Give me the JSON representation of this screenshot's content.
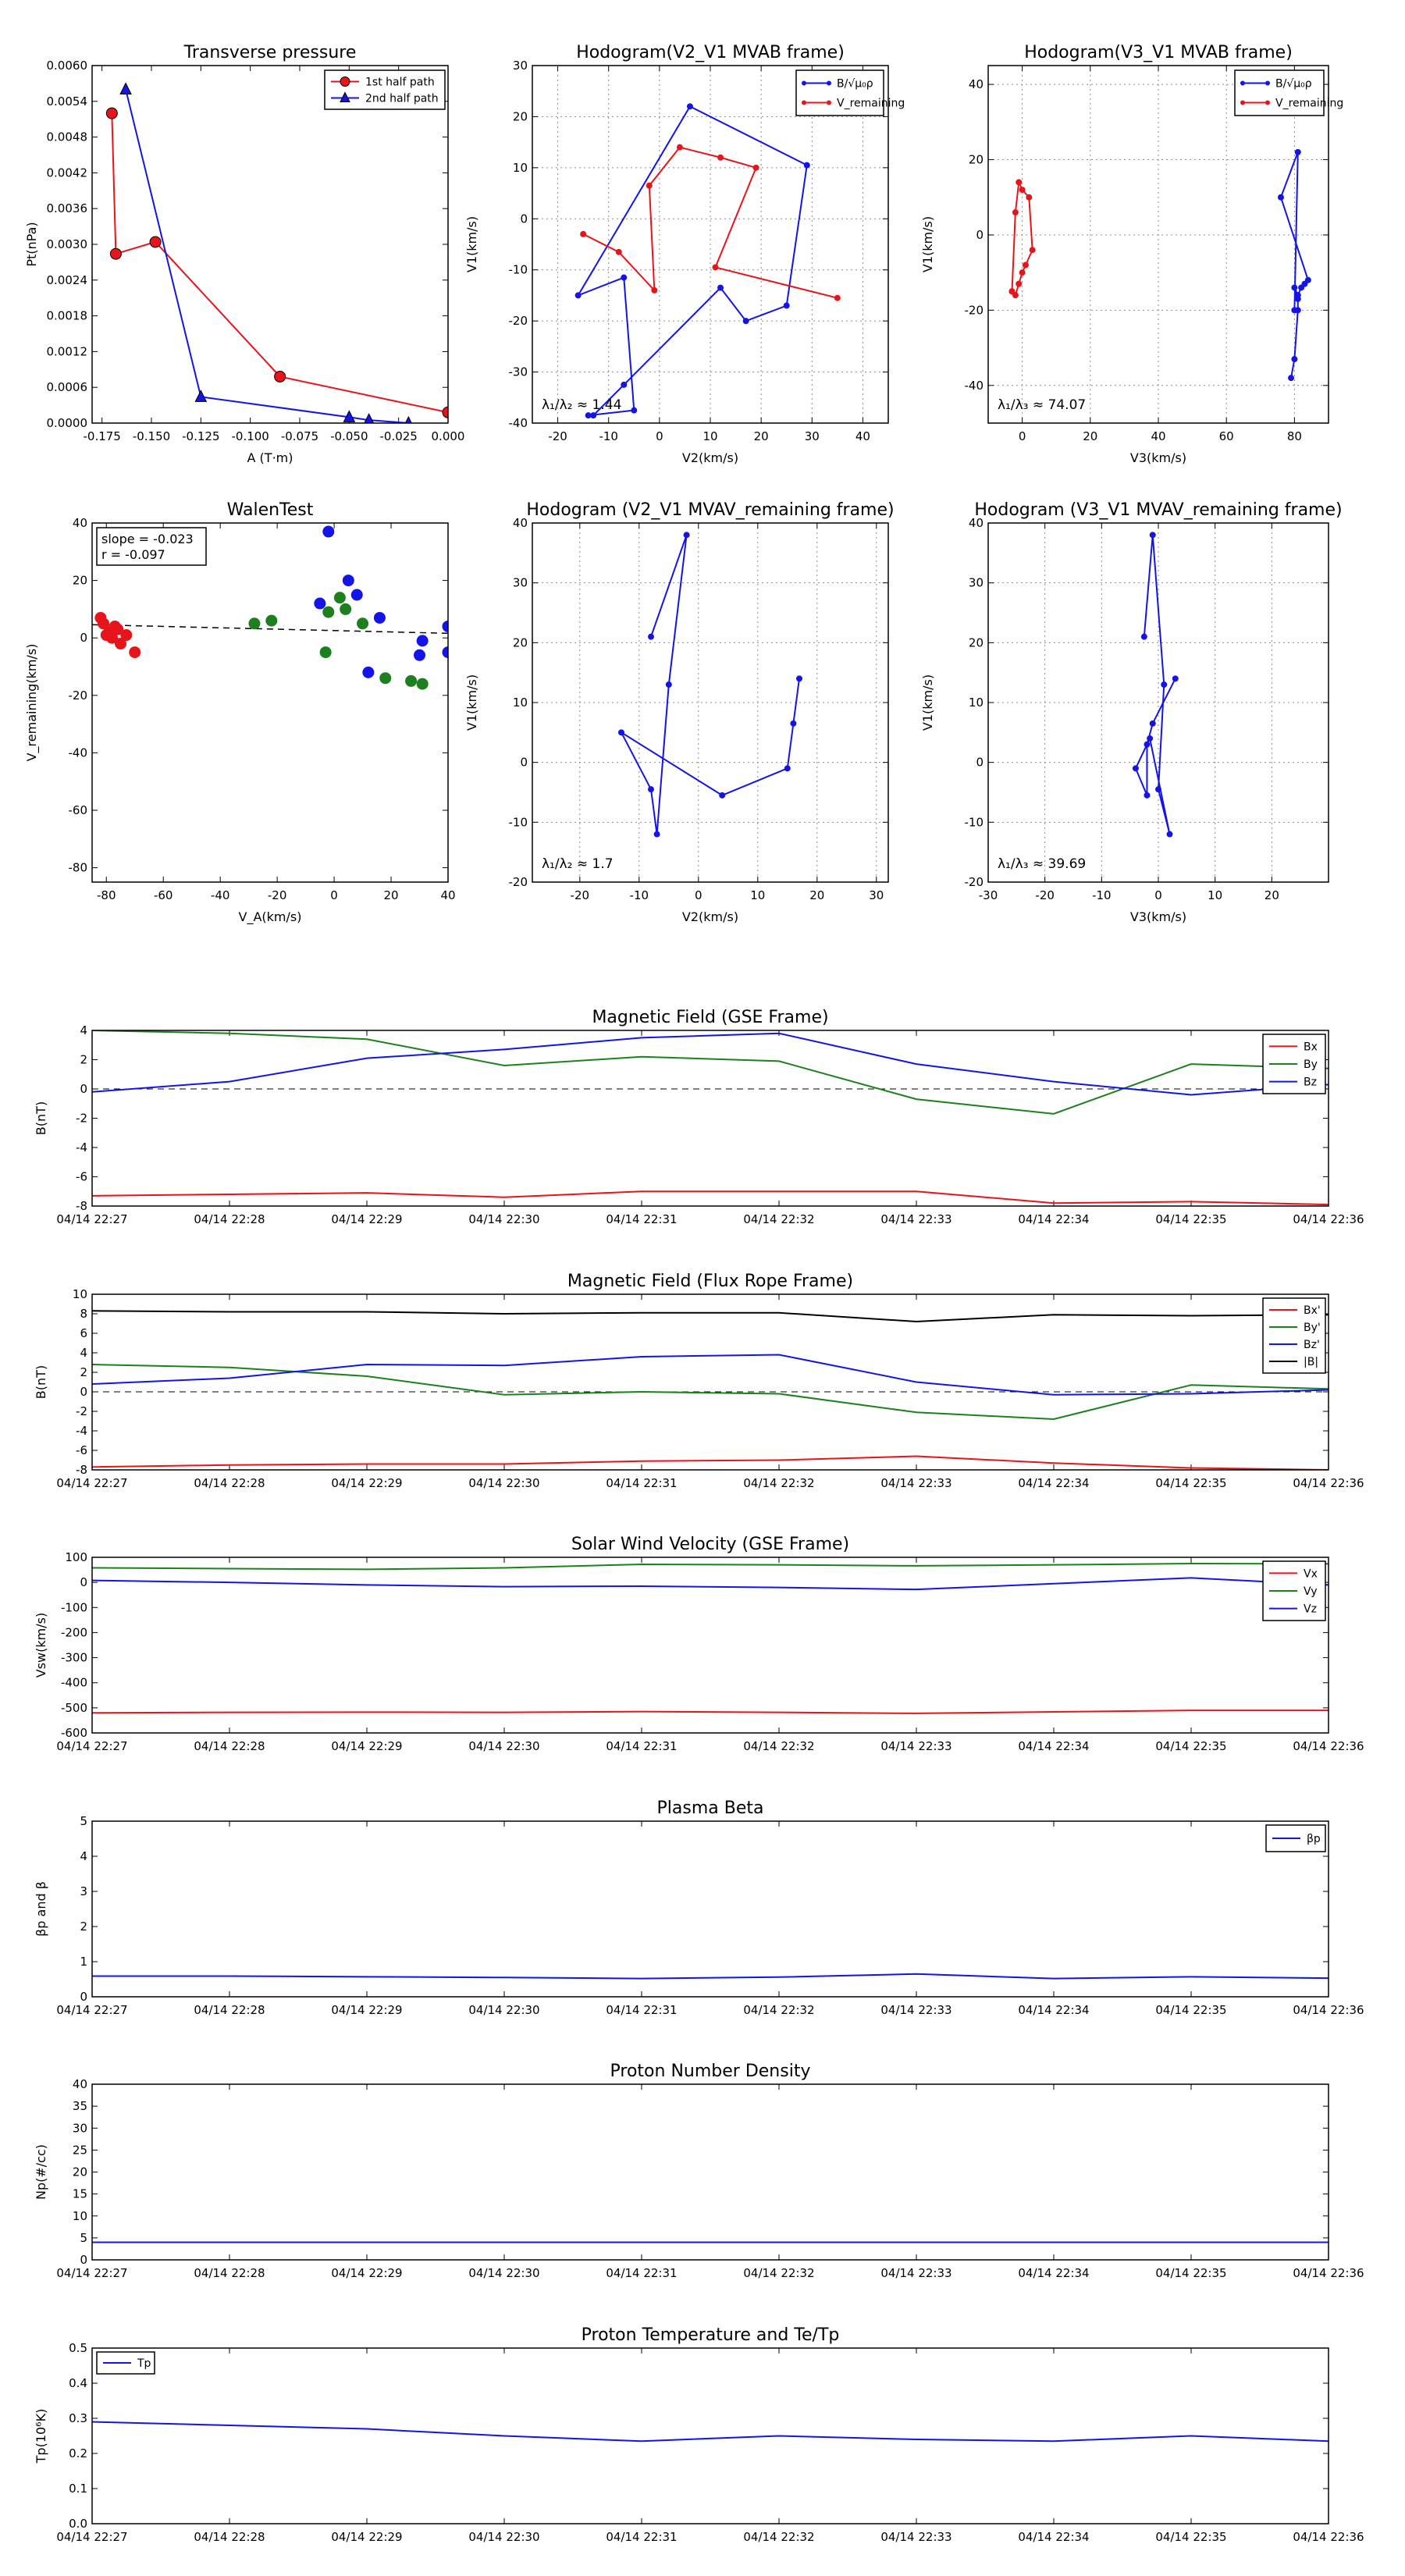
{
  "colors": {
    "red": "#e8141b",
    "green": "#1d7f1d",
    "blue": "#1414e8",
    "black": "#000000",
    "grid": "#8c8c8c"
  },
  "chart_data": [
    {
      "id": "transverse-pressure",
      "type": "line",
      "title": "Transverse pressure",
      "xlabel": "A (T·m)",
      "ylabel": "Pt(nPa)",
      "xlim": [
        -0.18,
        0.0
      ],
      "ylim": [
        0.0,
        0.006
      ],
      "xticks": [
        -0.175,
        -0.15,
        -0.125,
        -0.1,
        -0.075,
        -0.05,
        -0.025,
        0.0
      ],
      "xtick_labels": [
        "-0.175",
        "-0.150",
        "-0.125",
        "-0.100",
        "-0.075",
        "-0.050",
        "-0.025",
        "0.000"
      ],
      "yticks": [
        0.0,
        0.0006,
        0.0012,
        0.0018,
        0.0024,
        0.003,
        0.0036,
        0.0042,
        0.0048,
        0.0054,
        0.006
      ],
      "ytick_labels": [
        "0.0000",
        "0.0006",
        "0.0012",
        "0.0018",
        "0.0024",
        "0.0030",
        "0.0036",
        "0.0042",
        "0.0048",
        "0.0054",
        "0.0060"
      ],
      "grid": false,
      "legend": "top-right",
      "series": [
        {
          "name": "1st half path",
          "color": "red",
          "marker": "circle",
          "line": "solid",
          "x": [
            -0.17,
            -0.168,
            -0.148,
            -0.085,
            0.0
          ],
          "y": [
            0.0052,
            0.00284,
            0.00304,
            0.00078,
            0.00018
          ]
        },
        {
          "name": "2nd half path",
          "color": "blue",
          "marker": "triangle",
          "line": "solid",
          "x": [
            -0.163,
            -0.125,
            -0.05,
            -0.04,
            -0.02
          ],
          "y": [
            0.0056,
            0.00044,
            0.0001,
            5e-05,
            0.0
          ]
        }
      ]
    },
    {
      "id": "hodogram-v2-v1-mvab",
      "type": "line",
      "title": "Hodogram(V2_V1 MVAB frame)",
      "xlabel": "V2(km/s)",
      "ylabel": "V1(km/s)",
      "xlim": [
        -25,
        45
      ],
      "ylim": [
        -40,
        30
      ],
      "xticks": [
        -20,
        -10,
        0,
        10,
        20,
        30,
        40
      ],
      "yticks": [
        -40,
        -30,
        -20,
        -10,
        0,
        10,
        20,
        30
      ],
      "grid": true,
      "legend": "top-right",
      "annotation": "λ₁/λ₂ ≈ 1.44",
      "series": [
        {
          "name": "B/√μ₀ρ",
          "color": "blue",
          "marker": "dot",
          "x": [
            -14,
            -5,
            -7,
            -16,
            6,
            29,
            25,
            17,
            12,
            -7,
            -13
          ],
          "y": [
            -38.5,
            -37.5,
            -11.5,
            -15,
            22,
            10.5,
            -17,
            -20,
            -13.5,
            -32.5,
            -38.5
          ]
        },
        {
          "name": "V_remaining",
          "color": "red",
          "marker": "dot",
          "x": [
            -15,
            -8,
            -1,
            -2,
            4,
            12,
            19,
            11,
            35
          ],
          "y": [
            -3,
            -6.5,
            -14,
            6.5,
            14,
            12,
            10,
            -9.5,
            -15.5
          ]
        }
      ]
    },
    {
      "id": "hodogram-v3-v1-mvab",
      "type": "line",
      "title": "Hodogram(V3_V1 MVAB frame)",
      "xlabel": "V3(km/s)",
      "ylabel": "V1(km/s)",
      "xlim": [
        -10,
        90
      ],
      "ylim": [
        -50,
        45
      ],
      "xticks": [
        0,
        20,
        40,
        60,
        80
      ],
      "yticks": [
        -40,
        -20,
        0,
        20,
        40
      ],
      "grid": true,
      "legend": "top-right",
      "annotation": "λ₁/λ₃ ≈ 74.07",
      "series": [
        {
          "name": "B/√μ₀ρ",
          "color": "blue",
          "marker": "dot",
          "x": [
            79,
            80,
            81,
            81,
            80,
            81,
            82,
            83,
            84,
            76,
            81,
            80
          ],
          "y": [
            -38,
            -33,
            -20,
            -17,
            -14,
            -16,
            -14,
            -13,
            -12,
            10,
            22,
            -20
          ]
        },
        {
          "name": "V_remaining",
          "color": "red",
          "marker": "dot",
          "x": [
            -3,
            -2,
            -1,
            0,
            1,
            3,
            2,
            0,
            -1,
            -2,
            -3
          ],
          "y": [
            -15,
            -16,
            -13,
            -10,
            -8,
            -4,
            10,
            12,
            14,
            6,
            -15
          ]
        }
      ]
    },
    {
      "id": "walen-test",
      "type": "scatter",
      "title": "WalenTest",
      "xlabel": "V_A(km/s)",
      "ylabel": "V_remaining(km/s)",
      "xlim": [
        -85,
        40
      ],
      "ylim": [
        -85,
        40
      ],
      "xticks": [
        -80,
        -60,
        -40,
        -20,
        0,
        20,
        40
      ],
      "yticks": [
        -80,
        -60,
        -40,
        -20,
        0,
        20,
        40
      ],
      "grid": false,
      "annotation_lines": [
        "slope = -0.023",
        "r = -0.097"
      ],
      "fit_line": {
        "x": [
          -85,
          40
        ],
        "y": [
          4.6,
          1.6
        ]
      },
      "series": [
        {
          "name": "red",
          "color": "red",
          "x": [
            -82,
            -81,
            -80,
            -79,
            -78,
            -77,
            -76,
            -75,
            -73,
            -70
          ],
          "y": [
            7,
            5,
            1,
            2,
            0,
            4,
            3,
            -2,
            1,
            -5
          ]
        },
        {
          "name": "green",
          "color": "green",
          "x": [
            -28,
            -22,
            -3,
            -2,
            2,
            4,
            10,
            18,
            27,
            31
          ],
          "y": [
            5,
            6,
            -5,
            9,
            14,
            10,
            5,
            -14,
            -15,
            -16
          ]
        },
        {
          "name": "blue",
          "color": "blue",
          "x": [
            -2,
            -5,
            5,
            8,
            12,
            16,
            30,
            31,
            40,
            40
          ],
          "y": [
            37,
            12,
            20,
            15,
            -12,
            7,
            -6,
            -1,
            4,
            -5
          ]
        }
      ]
    },
    {
      "id": "hodogram-v2-v1-mvav",
      "type": "line",
      "title": "Hodogram (V2_V1 MVAV_remaining frame)",
      "xlabel": "V2(km/s)",
      "ylabel": "V1(km/s)",
      "xlim": [
        -28,
        32
      ],
      "ylim": [
        -20,
        40
      ],
      "xticks": [
        -20,
        -10,
        0,
        10,
        20,
        30
      ],
      "yticks": [
        -20,
        -10,
        0,
        10,
        20,
        30,
        40
      ],
      "grid": true,
      "annotation": "λ₁/λ₂ ≈ 1.7",
      "series": [
        {
          "name": "",
          "color": "blue",
          "marker": "dot",
          "x": [
            -8,
            -2,
            -5,
            -7,
            -8,
            -13,
            4,
            15,
            16,
            17
          ],
          "y": [
            21,
            38,
            13,
            -12,
            -4.5,
            5,
            -5.5,
            -1,
            6.5,
            14
          ]
        }
      ]
    },
    {
      "id": "hodogram-v3-v1-mvav",
      "type": "line",
      "title": "Hodogram (V3_V1 MVAV_remaining frame)",
      "xlabel": "V3(km/s)",
      "ylabel": "V1(km/s)",
      "xlim": [
        -30,
        30
      ],
      "ylim": [
        -20,
        40
      ],
      "xticks": [
        -30,
        -20,
        -10,
        0,
        10,
        20
      ],
      "yticks": [
        -20,
        -10,
        0,
        10,
        20,
        30,
        40
      ],
      "grid": true,
      "annotation": "λ₁/λ₃ ≈ 39.69",
      "series": [
        {
          "name": "",
          "color": "blue",
          "marker": "dot",
          "x": [
            -2.5,
            -1,
            1,
            0,
            2,
            -1.5,
            -4,
            -2,
            -2,
            -1,
            3
          ],
          "y": [
            21,
            38,
            13,
            -4.5,
            -12,
            4,
            -1,
            -5.5,
            3,
            6.5,
            14
          ]
        }
      ]
    },
    {
      "id": "magnetic-field-gse",
      "type": "line",
      "title": "Magnetic Field (GSE Frame)",
      "ylabel": "B(nT)",
      "ylim": [
        -8,
        4
      ],
      "yticks": [
        -8,
        -6,
        -4,
        -2,
        0,
        2,
        4
      ],
      "zero_line": true,
      "legend": "top-right",
      "categories": [
        "04/14 22:27",
        "04/14 22:28",
        "04/14 22:29",
        "04/14 22:30",
        "04/14 22:31",
        "04/14 22:32",
        "04/14 22:33",
        "04/14 22:34",
        "04/14 22:35",
        "04/14 22:36"
      ],
      "series": [
        {
          "name": "Bx",
          "color": "red",
          "values": [
            -7.3,
            -7.2,
            -7.1,
            -7.4,
            -7.0,
            -7.0,
            -7.0,
            -7.8,
            -7.7,
            -7.9
          ]
        },
        {
          "name": "By",
          "color": "green",
          "values": [
            4.0,
            3.8,
            3.4,
            1.6,
            2.2,
            1.9,
            -0.7,
            -1.7,
            1.7,
            1.4
          ]
        },
        {
          "name": "Bz",
          "color": "blue",
          "values": [
            -0.2,
            0.5,
            2.1,
            2.7,
            3.5,
            3.8,
            1.7,
            0.5,
            -0.4,
            0.3
          ]
        }
      ]
    },
    {
      "id": "magnetic-field-flux-rope",
      "type": "line",
      "title": "Magnetic Field (Flux Rope Frame)",
      "ylabel": "B(nT)",
      "ylim": [
        -8,
        10
      ],
      "yticks": [
        -8,
        -6,
        -4,
        -2,
        0,
        2,
        4,
        6,
        8,
        10
      ],
      "zero_line": true,
      "legend": "top-right",
      "categories": [
        "04/14 22:27",
        "04/14 22:28",
        "04/14 22:29",
        "04/14 22:30",
        "04/14 22:31",
        "04/14 22:32",
        "04/14 22:33",
        "04/14 22:34",
        "04/14 22:35",
        "04/14 22:36"
      ],
      "series": [
        {
          "name": "Bx'",
          "color": "red",
          "values": [
            -7.7,
            -7.5,
            -7.4,
            -7.4,
            -7.1,
            -7.0,
            -6.6,
            -7.3,
            -7.8,
            -8.0
          ]
        },
        {
          "name": "By'",
          "color": "green",
          "values": [
            2.8,
            2.5,
            1.6,
            -0.3,
            0.0,
            -0.2,
            -2.1,
            -2.8,
            0.7,
            0.3
          ]
        },
        {
          "name": "Bz'",
          "color": "blue",
          "values": [
            0.8,
            1.4,
            2.8,
            2.7,
            3.6,
            3.8,
            1.0,
            -0.3,
            -0.2,
            0.2
          ]
        },
        {
          "name": "|B|",
          "color": "black",
          "values": [
            8.3,
            8.2,
            8.2,
            8.0,
            8.1,
            8.1,
            7.2,
            7.9,
            7.8,
            7.9
          ]
        }
      ]
    },
    {
      "id": "solar-wind-velocity",
      "type": "line",
      "title": "Solar Wind Velocity (GSE Frame)",
      "ylabel": "Vsw(km/s)",
      "ylim": [
        -600,
        100
      ],
      "yticks": [
        -600,
        -500,
        -400,
        -300,
        -200,
        -100,
        0,
        100
      ],
      "legend": "top-right",
      "categories": [
        "04/14 22:27",
        "04/14 22:28",
        "04/14 22:29",
        "04/14 22:30",
        "04/14 22:31",
        "04/14 22:32",
        "04/14 22:33",
        "04/14 22:34",
        "04/14 22:35",
        "04/14 22:36"
      ],
      "series": [
        {
          "name": "Vx",
          "color": "red",
          "values": [
            -520,
            -518,
            -517,
            -518,
            -515,
            -518,
            -522,
            -516,
            -510,
            -510
          ]
        },
        {
          "name": "Vy",
          "color": "green",
          "values": [
            58,
            55,
            52,
            58,
            72,
            70,
            66,
            70,
            75,
            74
          ]
        },
        {
          "name": "Vz",
          "color": "blue",
          "values": [
            8,
            0,
            -10,
            -17,
            -15,
            -20,
            -28,
            -5,
            18,
            -10
          ]
        }
      ]
    },
    {
      "id": "plasma-beta",
      "type": "line",
      "title": "Plasma Beta",
      "ylabel": "βp and β",
      "ylim": [
        0,
        5
      ],
      "yticks": [
        0,
        1,
        2,
        3,
        4,
        5
      ],
      "legend": "top-right",
      "categories": [
        "04/14 22:27",
        "04/14 22:28",
        "04/14 22:29",
        "04/14 22:30",
        "04/14 22:31",
        "04/14 22:32",
        "04/14 22:33",
        "04/14 22:34",
        "04/14 22:35",
        "04/14 22:36"
      ],
      "series": [
        {
          "name": "βp",
          "color": "blue",
          "values": [
            0.59,
            0.59,
            0.57,
            0.55,
            0.52,
            0.56,
            0.65,
            0.52,
            0.57,
            0.53
          ]
        }
      ]
    },
    {
      "id": "proton-number-density",
      "type": "line",
      "title": "Proton Number Density",
      "ylabel": "Np(#/cc)",
      "ylim": [
        0,
        40
      ],
      "yticks": [
        0,
        5,
        10,
        15,
        20,
        25,
        30,
        35,
        40
      ],
      "categories": [
        "04/14 22:27",
        "04/14 22:28",
        "04/14 22:29",
        "04/14 22:30",
        "04/14 22:31",
        "04/14 22:32",
        "04/14 22:33",
        "04/14 22:34",
        "04/14 22:35",
        "04/14 22:36"
      ],
      "series": [
        {
          "name": "",
          "color": "blue",
          "values": [
            4.0,
            4.0,
            4.0,
            4.0,
            4.0,
            4.0,
            4.0,
            4.0,
            4.0,
            4.0
          ]
        }
      ]
    },
    {
      "id": "proton-temperature",
      "type": "line",
      "title": "Proton Temperature and Te/Tp",
      "ylabel": "Tp(10⁶K)",
      "ylim": [
        0,
        0.5
      ],
      "yticks": [
        0.0,
        0.1,
        0.2,
        0.3,
        0.4,
        0.5
      ],
      "ytick_labels": [
        "0.0",
        "0.1",
        "0.2",
        "0.3",
        "0.4",
        "0.5"
      ],
      "legend": "top-left",
      "categories": [
        "04/14 22:27",
        "04/14 22:28",
        "04/14 22:29",
        "04/14 22:30",
        "04/14 22:31",
        "04/14 22:32",
        "04/14 22:33",
        "04/14 22:34",
        "04/14 22:35",
        "04/14 22:36"
      ],
      "series": [
        {
          "name": "Tp",
          "color": "blue",
          "values": [
            0.29,
            0.28,
            0.27,
            0.25,
            0.235,
            0.25,
            0.24,
            0.235,
            0.25,
            0.235
          ]
        }
      ]
    }
  ]
}
